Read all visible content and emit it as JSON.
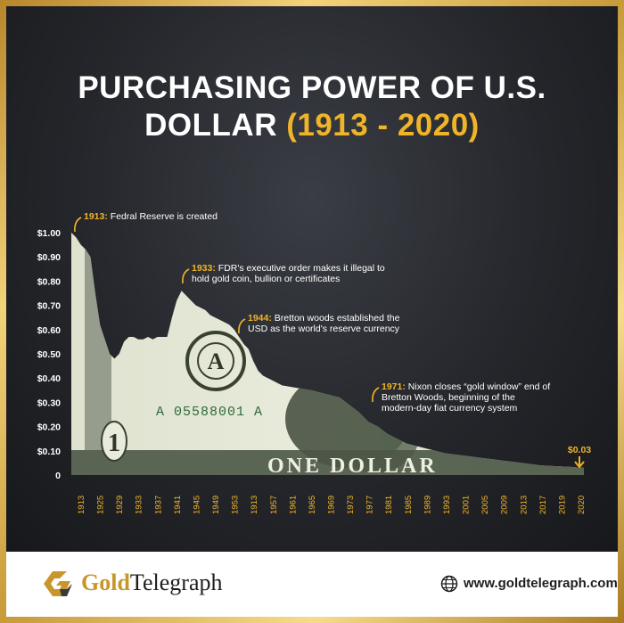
{
  "title": {
    "line1": "PURCHASING POWER OF U.S.",
    "line2_prefix": "DOLLAR ",
    "line2_years": "(1913 - 2020)"
  },
  "colors": {
    "gold": "#f0b429",
    "background": "#24262b",
    "bill_light": "#e6e8d8",
    "bill_dark": "#3f4a3a"
  },
  "chart_data": {
    "type": "area",
    "title": "PURCHASING POWER OF U.S. DOLLAR (1913 - 2020)",
    "ylim": [
      0,
      1.0
    ],
    "ytick_labels": [
      "0",
      "$0.10",
      "$0.20",
      "$0.30",
      "$0.40",
      "$0.50",
      "$0.60",
      "$0.70",
      "$0.80",
      "$0.90",
      "$1.00"
    ],
    "xtick_labels": [
      "1913",
      "1925",
      "1929",
      "1933",
      "1937",
      "1941",
      "1945",
      "1949",
      "1953",
      "1913",
      "1957",
      "1961",
      "1965",
      "1969",
      "1973",
      "1977",
      "1981",
      "1985",
      "1989",
      "1993",
      "2001",
      "2005",
      "2009",
      "2013",
      "2017",
      "2019",
      "2020"
    ],
    "series": [
      {
        "x": [
          1913,
          1914,
          1915,
          1916,
          1917,
          1918,
          1919,
          1920,
          1921,
          1922,
          1923,
          1924,
          1925,
          1926,
          1927,
          1928,
          1929,
          1930,
          1931,
          1932,
          1933,
          1934,
          1935,
          1936,
          1937,
          1938,
          1939,
          1940,
          1941,
          1942,
          1943,
          1944,
          1945,
          1946,
          1947,
          1948,
          1949,
          1950,
          1951,
          1952,
          1953,
          1955,
          1957,
          1960,
          1963,
          1965,
          1967,
          1969,
          1971,
          1973,
          1975,
          1977,
          1979,
          1981,
          1983,
          1985,
          1987,
          1989,
          1991,
          1993,
          1995,
          1997,
          1999,
          2001,
          2003,
          2005,
          2007,
          2009,
          2011,
          2013,
          2015,
          2017,
          2019,
          2020
        ],
        "values": [
          1.0,
          0.98,
          0.95,
          0.93,
          0.9,
          0.75,
          0.62,
          0.56,
          0.5,
          0.48,
          0.5,
          0.55,
          0.57,
          0.57,
          0.56,
          0.56,
          0.57,
          0.56,
          0.57,
          0.57,
          0.57,
          0.65,
          0.72,
          0.76,
          0.74,
          0.72,
          0.7,
          0.69,
          0.68,
          0.66,
          0.65,
          0.64,
          0.63,
          0.62,
          0.6,
          0.57,
          0.54,
          0.52,
          0.47,
          0.43,
          0.41,
          0.39,
          0.37,
          0.36,
          0.35,
          0.34,
          0.33,
          0.32,
          0.29,
          0.26,
          0.22,
          0.2,
          0.17,
          0.15,
          0.13,
          0.12,
          0.11,
          0.1,
          0.09,
          0.085,
          0.08,
          0.075,
          0.07,
          0.065,
          0.06,
          0.055,
          0.05,
          0.045,
          0.04,
          0.038,
          0.036,
          0.034,
          0.031,
          0.03
        ]
      }
    ],
    "annotations": [
      {
        "year": "1913:",
        "text": [
          "Fedral Reserve is created"
        ]
      },
      {
        "year": "1933:",
        "text": [
          "FDR's executive order makes it illegal to",
          "hold gold coin, bullion or certificates"
        ]
      },
      {
        "year": "1944:",
        "text": [
          "Bretton woods established the",
          "USD as the world's reserve currency"
        ]
      },
      {
        "year": "1971:",
        "text": [
          "Nixon closes “gold window” end of",
          "Bretton Woods, beginning of the",
          "modern-day fiat currency system"
        ]
      }
    ],
    "end_label": "$0.03"
  },
  "bill_text": {
    "serial": "A 05588001 A",
    "one_dollar": "ONE DOLLAR",
    "seal_letter": "A",
    "numeral": "1"
  },
  "footer": {
    "logo_icon": "goldtelegraph-logo-icon",
    "brand_gold": "Gold",
    "brand_dark": "Telegraph",
    "globe_icon": "globe-icon",
    "website": "www.goldtelegraph.com"
  }
}
